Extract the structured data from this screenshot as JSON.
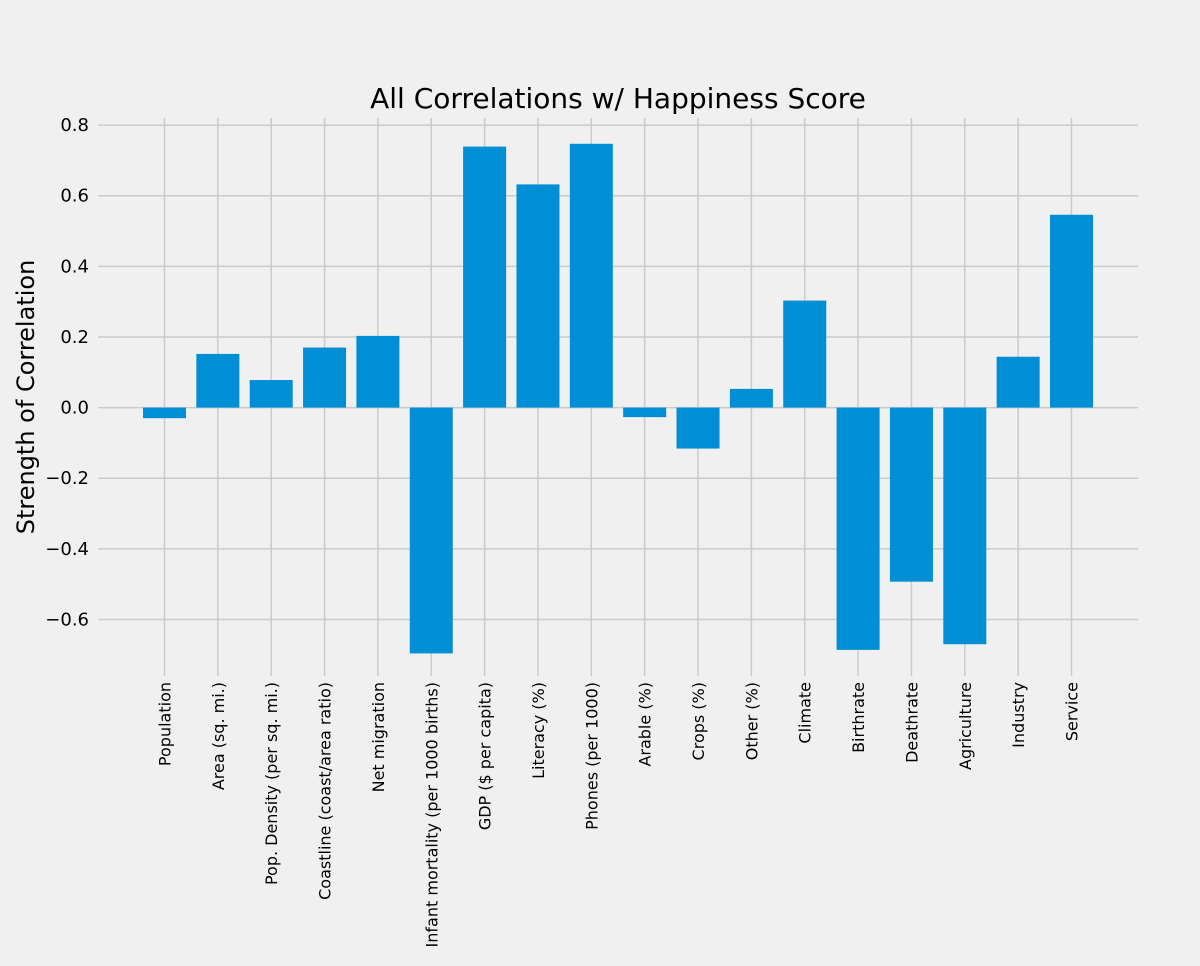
{
  "chart_data": {
    "type": "bar",
    "title": "All Correlations w/ Happiness Score",
    "xlabel": "",
    "ylabel": "Strength of Correlation",
    "categories": [
      "Population",
      "Area (sq. mi.)",
      "Pop. Density (per sq. mi.)",
      "Coastline (coast/area ratio)",
      "Net migration",
      "Infant mortality (per 1000 births)",
      "GDP ($ per capita)",
      "Literacy (%)",
      "Phones (per 1000)",
      "Arable (%)",
      "Crops (%)",
      "Other (%)",
      "Climate",
      "Birthrate",
      "Deathrate",
      "Agriculture",
      "Industry",
      "Service"
    ],
    "values": [
      -0.03,
      0.152,
      0.078,
      0.17,
      0.203,
      -0.696,
      0.739,
      0.632,
      0.747,
      -0.027,
      -0.116,
      0.053,
      0.303,
      -0.686,
      -0.493,
      -0.67,
      0.144,
      0.546
    ],
    "ylim": [
      -0.76,
      0.82
    ],
    "yticks": [
      0.8,
      0.6,
      0.4,
      0.2,
      0.0,
      -0.2,
      -0.4,
      -0.6
    ],
    "ytick_labels": [
      "0.8",
      "0.6",
      "0.4",
      "0.2",
      "0.0",
      "−0.2",
      "−0.4",
      "−0.6"
    ],
    "grid": true,
    "bar_color": "#008fd5",
    "background_color": "#f0f0f0",
    "grid_color": "#cbcbcb"
  }
}
